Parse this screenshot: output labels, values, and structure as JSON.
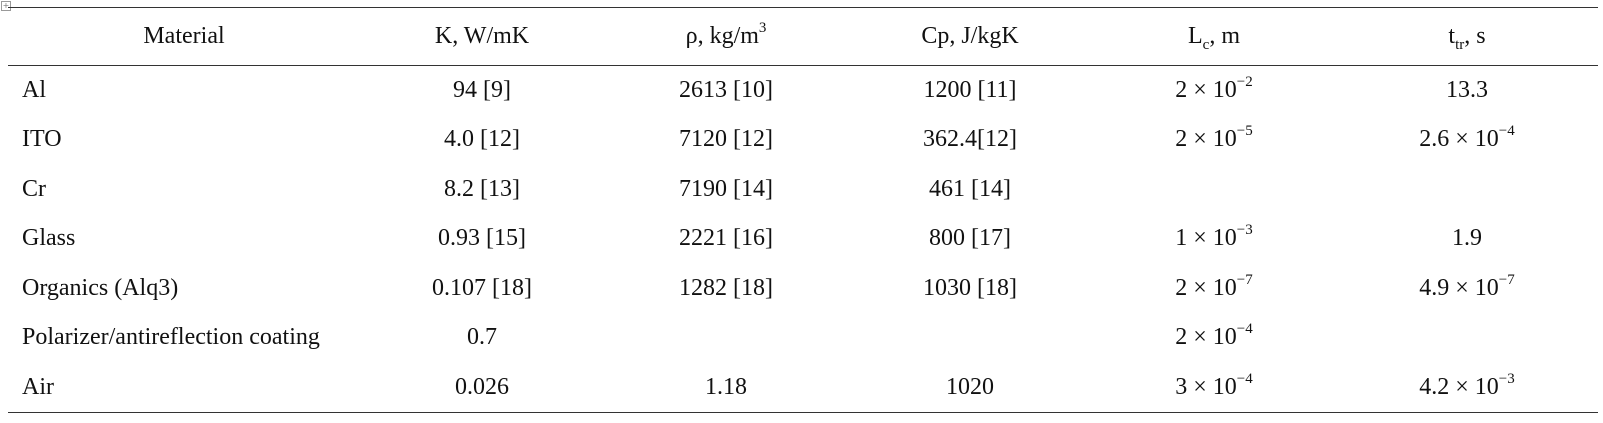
{
  "table": {
    "headers": [
      {
        "base": "Material",
        "sup": "",
        "sub": "",
        "tail": ""
      },
      {
        "base": "K, W/mK",
        "sup": "",
        "sub": "",
        "tail": ""
      },
      {
        "base": "ρ, kg/m",
        "sup": "3",
        "sub": "",
        "tail": ""
      },
      {
        "base": "Cp, J/kgK",
        "sup": "",
        "sub": "",
        "tail": ""
      },
      {
        "base": "L",
        "sup": "",
        "sub": "c",
        "tail": ", m"
      },
      {
        "base": "t",
        "sup": "",
        "sub": "tr",
        "tail": ", s"
      }
    ],
    "rows": [
      {
        "material": "Al",
        "k": "94 [9]",
        "rho": "2613 [10]",
        "cp": "1200 [11]",
        "lc": {
          "m": "2 × 10",
          "e": "−2"
        },
        "ttr": {
          "m": "13.3",
          "e": ""
        }
      },
      {
        "material": "ITO",
        "k": "4.0 [12]",
        "rho": "7120 [12]",
        "cp": "362.4[12]",
        "lc": {
          "m": "2 × 10",
          "e": "−5"
        },
        "ttr": {
          "m": "2.6 × 10",
          "e": "−4"
        }
      },
      {
        "material": "Cr",
        "k": "8.2 [13]",
        "rho": "7190 [14]",
        "cp": "461 [14]",
        "lc": {
          "m": "",
          "e": ""
        },
        "ttr": {
          "m": "",
          "e": ""
        }
      },
      {
        "material": "Glass",
        "k": "0.93 [15]",
        "rho": "2221 [16]",
        "cp": "800 [17]",
        "lc": {
          "m": "1 × 10",
          "e": "−3"
        },
        "ttr": {
          "m": "1.9",
          "e": ""
        }
      },
      {
        "material": "Organics (Alq3)",
        "k": "0.107 [18]",
        "rho": "1282 [18]",
        "cp": "1030 [18]",
        "lc": {
          "m": "2 × 10",
          "e": "−7"
        },
        "ttr": {
          "m": "4.9 × 10",
          "e": "−7"
        }
      },
      {
        "material": "Polarizer/antireflection coating",
        "k": "0.7",
        "rho": "",
        "cp": "",
        "lc": {
          "m": "2 × 10",
          "e": "−4"
        },
        "ttr": {
          "m": "",
          "e": ""
        }
      },
      {
        "material": "Air",
        "k": "0.026",
        "rho": "1.18",
        "cp": "1020",
        "lc": {
          "m": "3 × 10",
          "e": "−4"
        },
        "ttr": {
          "m": "4.2 × 10",
          "e": "−3"
        }
      }
    ]
  }
}
